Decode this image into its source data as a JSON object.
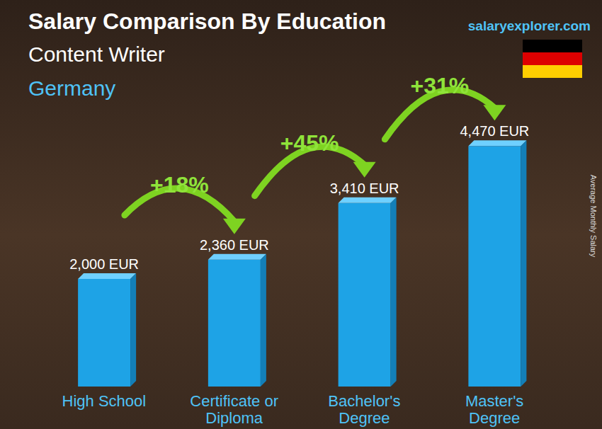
{
  "chart_data": {
    "type": "bar",
    "title": "Salary Comparison By Education",
    "subtitle": "Content Writer",
    "region": "Germany",
    "source": "salaryexplorer.com",
    "y_label": "Average Monthly Salary",
    "categories": [
      "High School",
      "Certificate or Diploma",
      "Bachelor's Degree",
      "Master's Degree"
    ],
    "values": [
      2000,
      2360,
      3410,
      4470
    ],
    "value_labels": [
      "2,000 EUR",
      "2,360 EUR",
      "3,410 EUR",
      "4,470 EUR"
    ],
    "annotations": [
      "+18%",
      "+45%",
      "+31%"
    ],
    "color": "#1ea3e6",
    "ylim": [
      0,
      6000
    ],
    "grid": false,
    "data_labels": true,
    "tick_labels": false
  }
}
